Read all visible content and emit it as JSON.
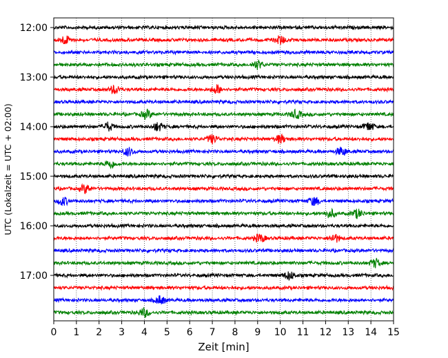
{
  "chart_data": {
    "type": "line",
    "title": "",
    "xlabel": "Zeit  [min]",
    "ylabel": "UTC (Lokalzeit = UTC + 02:00)",
    "xlim": [
      0,
      15
    ],
    "x_ticks": [
      0,
      1,
      2,
      3,
      4,
      5,
      6,
      7,
      8,
      9,
      10,
      11,
      12,
      13,
      14,
      15
    ],
    "x_tick_labels": [
      "0",
      "1",
      "2",
      "3",
      "4",
      "5",
      "6",
      "7",
      "8",
      "9",
      "10",
      "11",
      "12",
      "13",
      "14",
      "15"
    ],
    "y_tick_labels": [
      "12:00",
      "13:00",
      "14:00",
      "15:00",
      "16:00",
      "17:00"
    ],
    "grid": "vertical dotted at each minute",
    "trace_interval_minutes": 15,
    "color_cycle": [
      "#000000",
      "#ff0000",
      "#0000ff",
      "#008000"
    ],
    "traces": [
      {
        "start": "12:00",
        "color": "#000000",
        "events": []
      },
      {
        "start": "12:15",
        "color": "#ff0000",
        "events": [
          0.5,
          10
        ]
      },
      {
        "start": "12:30",
        "color": "#0000ff",
        "events": []
      },
      {
        "start": "12:45",
        "color": "#008000",
        "events": [
          9
        ]
      },
      {
        "start": "13:00",
        "color": "#000000",
        "events": []
      },
      {
        "start": "13:15",
        "color": "#ff0000",
        "events": [
          2.7,
          7.2
        ]
      },
      {
        "start": "13:30",
        "color": "#0000ff",
        "events": []
      },
      {
        "start": "13:45",
        "color": "#008000",
        "events": [
          4.1,
          10.7
        ]
      },
      {
        "start": "14:00",
        "color": "#000000",
        "events": [
          2.4,
          4.6,
          13.9
        ]
      },
      {
        "start": "14:15",
        "color": "#ff0000",
        "events": [
          7,
          10
        ]
      },
      {
        "start": "14:30",
        "color": "#0000ff",
        "events": [
          3.3,
          12.7
        ]
      },
      {
        "start": "14:45",
        "color": "#008000",
        "events": [
          2.5
        ]
      },
      {
        "start": "15:00",
        "color": "#000000",
        "events": []
      },
      {
        "start": "15:15",
        "color": "#ff0000",
        "events": [
          1.4
        ]
      },
      {
        "start": "15:30",
        "color": "#0000ff",
        "events": [
          0.4,
          11.5
        ]
      },
      {
        "start": "15:45",
        "color": "#008000",
        "events": [
          12.2,
          13.4
        ]
      },
      {
        "start": "16:00",
        "color": "#000000",
        "events": []
      },
      {
        "start": "16:15",
        "color": "#ff0000",
        "events": [
          9.1,
          12.4
        ]
      },
      {
        "start": "16:30",
        "color": "#0000ff",
        "events": []
      },
      {
        "start": "16:45",
        "color": "#008000",
        "events": [
          14.2
        ]
      },
      {
        "start": "17:00",
        "color": "#000000",
        "events": [
          10.4
        ]
      },
      {
        "start": "17:15",
        "color": "#ff0000",
        "events": []
      },
      {
        "start": "17:30",
        "color": "#0000ff",
        "events": [
          4.7
        ]
      },
      {
        "start": "17:45",
        "color": "#008000",
        "events": [
          4
        ]
      }
    ]
  }
}
